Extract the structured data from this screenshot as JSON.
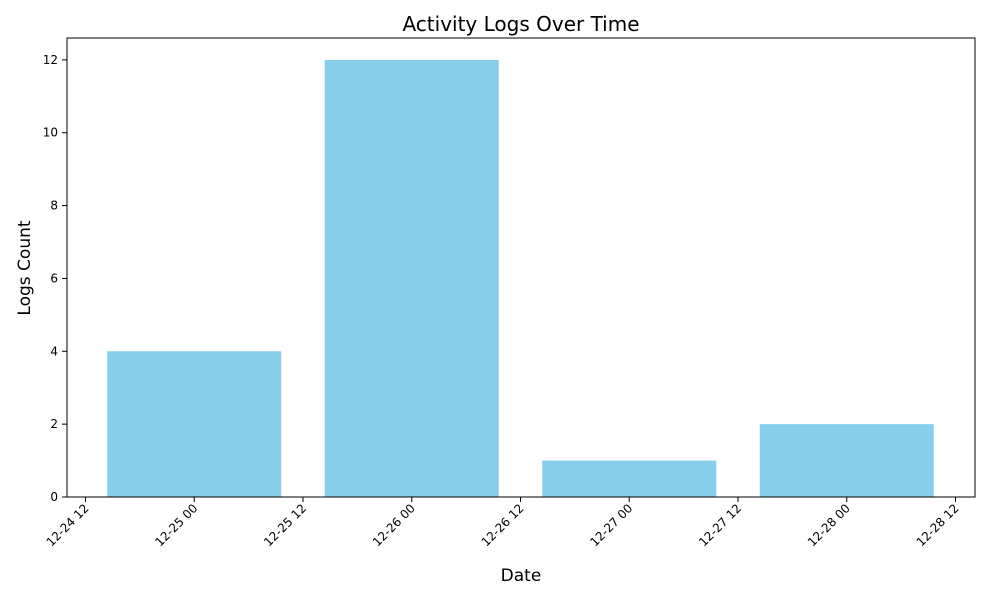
{
  "chart_data": {
    "type": "bar",
    "title": "Activity Logs Over Time",
    "xlabel": "Date",
    "ylabel": "Logs Count",
    "categories": [
      "12-25 00",
      "12-26 00",
      "12-27 00",
      "12-28 00"
    ],
    "values": [
      4,
      12,
      1,
      2
    ],
    "bar_color": "#87CEEB",
    "x_ticks": [
      "12-24 12",
      "12-25 00",
      "12-25 12",
      "12-26 00",
      "12-26 12",
      "12-27 00",
      "12-27 12",
      "12-28 00",
      "12-28 12"
    ],
    "y_ticks": [
      0,
      2,
      4,
      6,
      8,
      10,
      12
    ],
    "ylim": [
      0,
      12.6
    ],
    "grid": false,
    "legend": "none"
  }
}
